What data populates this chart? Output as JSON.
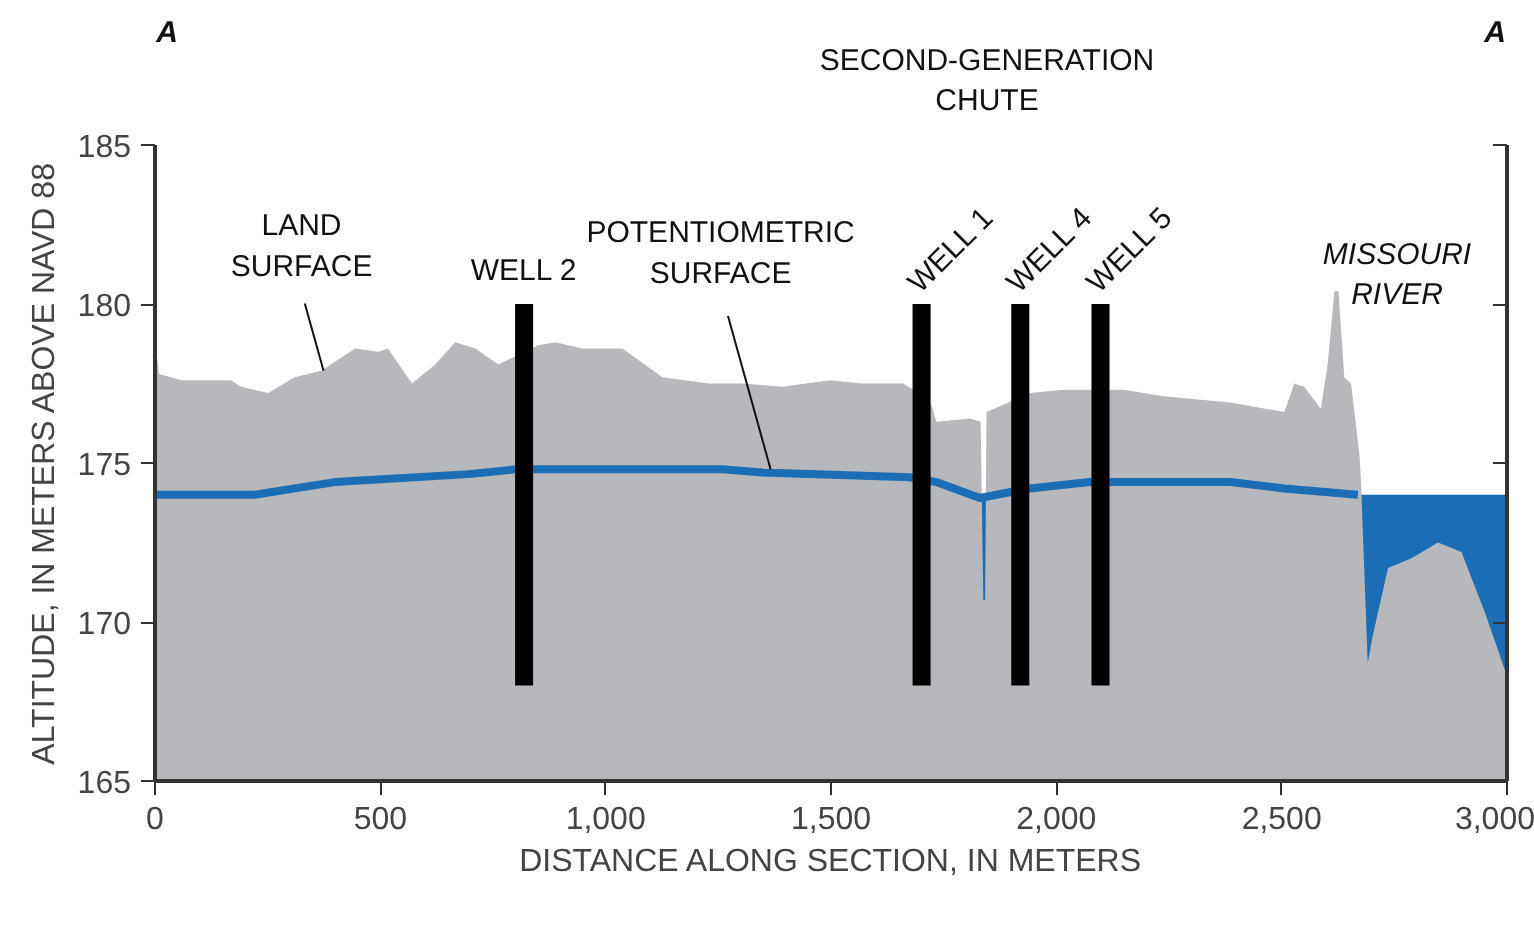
{
  "chart_data": {
    "type": "area",
    "xlabel": "DISTANCE ALONG SECTION, IN METERS",
    "ylabel": "ALTITUDE, IN METERS ABOVE NAVD 88",
    "xlim": [
      0,
      3000
    ],
    "ylim": [
      165,
      185
    ],
    "xticks": [
      0,
      500,
      {
        "value": 1000,
        "label": "1,000"
      },
      {
        "value": 1500,
        "label": "1,500"
      },
      {
        "value": 2000,
        "label": "2,000"
      },
      {
        "value": 2500,
        "label": "2,500"
      },
      {
        "value": 3000,
        "label": "3,000"
      }
    ],
    "yticks": [
      165,
      170,
      175,
      180,
      185
    ],
    "tick_labels": "xy",
    "grid": false,
    "series": [
      {
        "type": "area",
        "color": "#1b6db5",
        "x": [
          1832,
          1848
        ],
        "values": [
          173.9,
          173.9
        ]
      },
      {
        "type": "area",
        "color": "#1b6db5",
        "x": [
          2673,
          3000
        ],
        "values": [
          174.0,
          174.0
        ]
      },
      {
        "color": "#b7b8bb",
        "x": [
          0,
          9,
          58,
          102,
          169,
          191,
          251,
          310,
          369,
          444,
          496,
          517,
          570,
          622,
          666,
          711,
          762,
          850,
          889,
          948,
          1037,
          1126,
          1230,
          1304,
          1393,
          1497,
          1571,
          1660,
          1719,
          1734,
          1808,
          1832,
          1838,
          1842,
          1845,
          1941,
          2016,
          2150,
          2238,
          2386,
          2506,
          2528,
          2550,
          2587,
          2602,
          2617,
          2626,
          2639,
          2654,
          2673,
          2676,
          2691,
          2701,
          2736,
          2787,
          2847,
          2899,
          2951,
          3000
        ],
        "values": [
          178.9,
          177.8,
          177.6,
          177.6,
          177.6,
          177.4,
          177.2,
          177.7,
          177.9,
          178.6,
          178.5,
          178.6,
          177.5,
          178.1,
          178.8,
          178.6,
          178.1,
          178.7,
          178.8,
          178.6,
          178.6,
          177.7,
          177.5,
          177.5,
          177.4,
          177.6,
          177.5,
          177.5,
          177.0,
          176.3,
          176.4,
          176.3,
          170.7,
          170.7,
          176.6,
          177.2,
          177.3,
          177.3,
          177.1,
          176.9,
          176.6,
          177.5,
          177.4,
          176.7,
          178.1,
          180.4,
          180.4,
          177.7,
          177.5,
          175.2,
          174.4,
          168.7,
          169.5,
          171.7,
          172.0,
          172.5,
          172.2,
          170.3,
          168.3
        ]
      },
      {
        "type": "line",
        "color": "#1b6db5",
        "line_style": "solid",
        "marker": "none",
        "x": [
          0,
          221,
          399,
          696,
          800,
          1259,
          1348,
          1674,
          1734,
          1830,
          1941,
          2074,
          2386,
          2506,
          2669
        ],
        "values": [
          174.0,
          174.0,
          174.4,
          174.65,
          174.8,
          174.8,
          174.7,
          174.55,
          174.4,
          173.9,
          174.2,
          174.4,
          174.4,
          174.2,
          174.0
        ]
      },
      {
        "type": "bar",
        "color": "#000000",
        "x": [
          819,
          1701,
          1920,
          2098
        ],
        "base": [
          168,
          168,
          168,
          168
        ],
        "values": [
          12,
          12,
          12,
          12
        ]
      }
    ],
    "annotations": [
      "A",
      "A",
      "SECOND-GENERATION\nCHUTE",
      {
        "text": "LAND\nSURFACE",
        "x": 374,
        "y": 177.9
      },
      {
        "text": "POTENTIOMETRIC\nSURFACE",
        "x": 1366,
        "y": 174.8
      },
      {
        "text": "WELL 2",
        "x": 819,
        "y": 180
      },
      {
        "text": "WELL 1",
        "x": 1701,
        "y": 180
      },
      {
        "text": "WELL 4",
        "x": 1920,
        "y": 180
      },
      {
        "text": "WELL 5",
        "x": 2098,
        "y": 180
      },
      "MISSOURI\nRIVER"
    ]
  }
}
